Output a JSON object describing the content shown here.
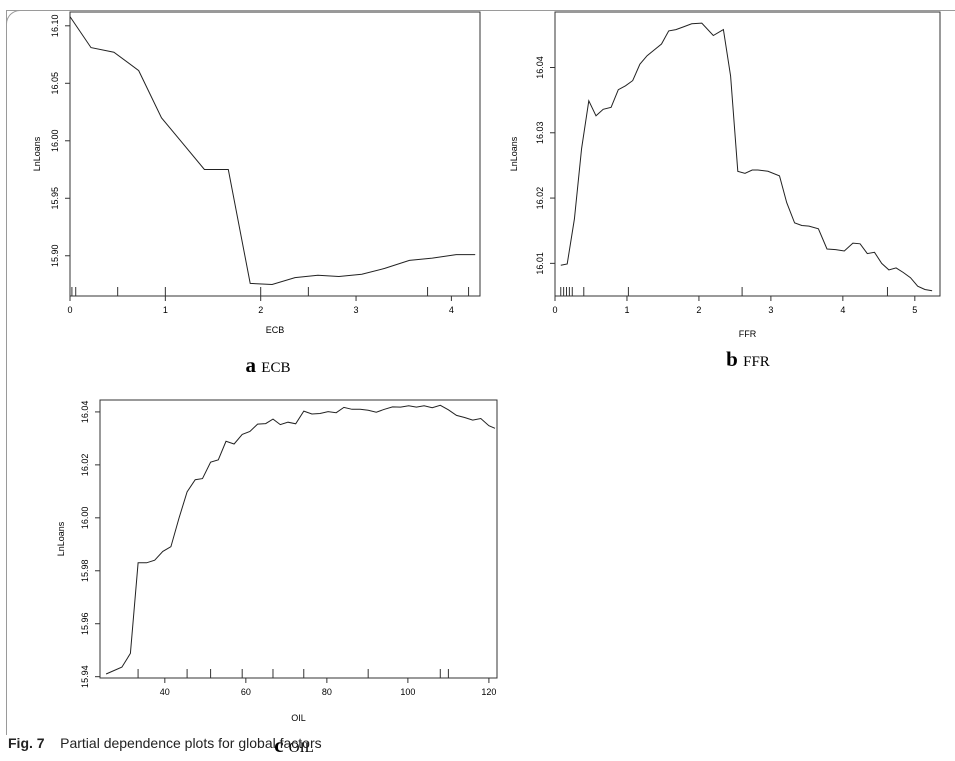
{
  "figure": {
    "fig_label": "Fig. 7",
    "caption": "Partial dependence plots for global factors"
  },
  "chart_data": [
    {
      "type": "line",
      "panel_letter": "a",
      "panel_name": "ECB",
      "xlabel": "ECB",
      "ylabel": "LnLoans",
      "xlim": [
        0.0,
        4.3
      ],
      "ylim": [
        15.865,
        16.112
      ],
      "xticks": [
        0,
        1,
        2,
        3,
        4
      ],
      "yticks": [
        15.9,
        15.95,
        16.0,
        16.05,
        16.1
      ],
      "ytick_labels": [
        "15.90",
        "15.95",
        "16.00",
        "16.05",
        "16.10"
      ],
      "x": [
        0.0,
        0.22,
        0.46,
        0.72,
        0.96,
        1.18,
        1.41,
        1.66,
        1.89,
        2.12,
        2.36,
        2.6,
        2.82,
        3.06,
        3.3,
        3.56,
        3.8,
        4.05,
        4.25
      ],
      "y": [
        16.108,
        16.081,
        16.077,
        16.061,
        16.02,
        15.998,
        15.975,
        15.975,
        15.876,
        15.875,
        15.881,
        15.883,
        15.882,
        15.884,
        15.889,
        15.896,
        15.898,
        15.901,
        15.901
      ],
      "rug": [
        0.02,
        0.06,
        0.5,
        1.0,
        2.0,
        2.5,
        3.75,
        4.18
      ]
    },
    {
      "type": "line",
      "panel_letter": "b",
      "panel_name": "FFR",
      "xlabel": "FFR",
      "ylabel": "LnLoans",
      "xlim": [
        0.0,
        5.35
      ],
      "ylim": [
        16.005,
        16.0485
      ],
      "xticks": [
        0,
        1,
        2,
        3,
        4,
        5
      ],
      "yticks": [
        16.01,
        16.02,
        16.03,
        16.04
      ],
      "ytick_labels": [
        "16.01",
        "16.02",
        "16.03",
        "16.04"
      ],
      "x": [
        0.08,
        0.17,
        0.27,
        0.37,
        0.47,
        0.57,
        0.67,
        0.78,
        0.88,
        0.98,
        1.08,
        1.18,
        1.28,
        1.38,
        1.48,
        1.58,
        1.68,
        1.78,
        1.9,
        2.04,
        2.2,
        2.34,
        2.44,
        2.54,
        2.64,
        2.74,
        2.82,
        2.96,
        3.12,
        3.22,
        3.33,
        3.43,
        3.53,
        3.66,
        3.78,
        3.9,
        4.02,
        4.14,
        4.24,
        4.34,
        4.44,
        4.54,
        4.64,
        4.74,
        4.84,
        4.94,
        5.04,
        5.14,
        5.24
      ],
      "y": [
        16.0097,
        16.0099,
        16.0168,
        16.0276,
        16.0349,
        16.0326,
        16.0336,
        16.0339,
        16.0366,
        16.0372,
        16.038,
        16.0405,
        16.0418,
        16.0427,
        16.0436,
        16.0456,
        16.0458,
        16.0462,
        16.0467,
        16.0468,
        16.0449,
        16.0458,
        16.0387,
        16.0241,
        16.0238,
        16.0243,
        16.0243,
        16.0241,
        16.0234,
        16.0193,
        16.0162,
        16.0158,
        16.0157,
        16.0153,
        16.0122,
        16.0121,
        16.0119,
        16.0131,
        16.013,
        16.0115,
        16.0117,
        16.01,
        16.009,
        16.0093,
        16.0086,
        16.0078,
        16.0065,
        16.006,
        16.0058
      ],
      "rug": [
        0.08,
        0.12,
        0.16,
        0.2,
        0.24,
        0.4,
        1.02,
        2.6,
        4.62
      ]
    },
    {
      "type": "line",
      "panel_letter": "c",
      "panel_name": "OIL",
      "xlabel": "OIL",
      "ylabel": "LnLoans",
      "xlim": [
        24.0,
        122.0
      ],
      "ylim": [
        15.9395,
        16.0445
      ],
      "xticks": [
        40,
        60,
        80,
        100,
        120
      ],
      "yticks": [
        15.94,
        15.96,
        15.98,
        16.0,
        16.02,
        16.04
      ],
      "ytick_labels": [
        "15.94",
        "15.96",
        "15.98",
        "16.00",
        "16.02",
        "16.04"
      ],
      "x": [
        25.5,
        29.4,
        31.5,
        33.4,
        35.5,
        37.5,
        39.5,
        41.5,
        43.5,
        45.5,
        47.5,
        49.3,
        51.3,
        53.2,
        55.1,
        57.1,
        59.1,
        61.0,
        62.9,
        64.9,
        66.7,
        68.5,
        70.4,
        72.3,
        74.3,
        76.3,
        78.3,
        80.3,
        82.3,
        84.2,
        86.2,
        88.2,
        90.2,
        92.2,
        94.2,
        96.2,
        98.2,
        100.2,
        102.1,
        104.0,
        106.0,
        108.0,
        110.0,
        112.0,
        114.0,
        116.0,
        118.0,
        120.0,
        121.5
      ],
      "y": [
        15.941,
        15.9436,
        15.9488,
        15.983,
        15.983,
        15.984,
        15.9873,
        15.9891,
        15.9999,
        16.0098,
        16.0144,
        16.0148,
        16.021,
        16.0219,
        16.0289,
        16.0279,
        16.0315,
        16.0326,
        16.0354,
        16.0356,
        16.0373,
        16.0352,
        16.0361,
        16.0355,
        16.0403,
        16.0392,
        16.0394,
        16.0401,
        16.0397,
        16.0417,
        16.041,
        16.041,
        16.0406,
        16.0399,
        16.041,
        16.0419,
        16.0418,
        16.0423,
        16.0418,
        16.0423,
        16.0416,
        16.0425,
        16.0408,
        16.0387,
        16.0379,
        16.0369,
        16.0375,
        16.0348,
        16.0338
      ],
      "rug": [
        33.4,
        45.5,
        51.3,
        59.1,
        66.7,
        74.3,
        90.2,
        108.0,
        110.0
      ]
    }
  ]
}
